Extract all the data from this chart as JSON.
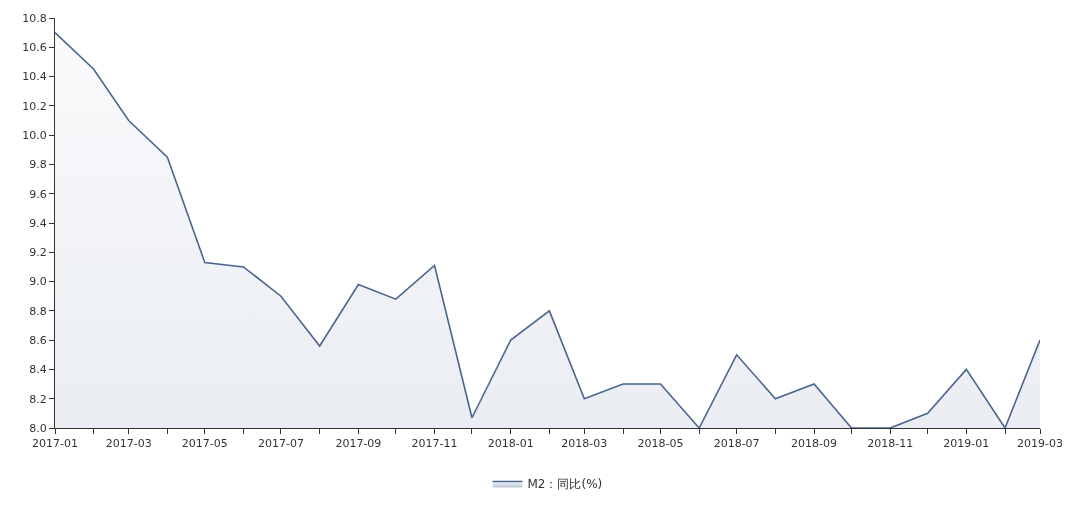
{
  "chart_data": {
    "type": "area",
    "x": [
      "2017-01",
      "2017-02",
      "2017-03",
      "2017-04",
      "2017-05",
      "2017-06",
      "2017-07",
      "2017-08",
      "2017-09",
      "2017-10",
      "2017-11",
      "2017-12",
      "2018-01",
      "2018-02",
      "2018-03",
      "2018-04",
      "2018-05",
      "2018-06",
      "2018-07",
      "2018-08",
      "2018-09",
      "2018-10",
      "2018-11",
      "2018-12",
      "2019-01",
      "2019-02",
      "2019-03"
    ],
    "series": [
      {
        "name": "M2：同比(%)",
        "color": "#4a6590",
        "values": [
          10.7,
          10.45,
          10.1,
          9.85,
          9.13,
          9.1,
          8.9,
          8.56,
          8.98,
          8.88,
          9.11,
          8.07,
          8.6,
          8.8,
          8.2,
          8.3,
          8.3,
          8.0,
          8.5,
          8.2,
          8.3,
          8.0,
          8.0,
          8.1,
          8.4,
          8.0,
          8.6
        ]
      }
    ],
    "xlim": [
      "2017-01",
      "2019-03"
    ],
    "xticks": [
      {
        "value": "2017-01",
        "label": "2017-01"
      },
      {
        "value": "2017-02",
        "label": null
      },
      {
        "value": "2017-03",
        "label": "2017-03"
      },
      {
        "value": "2017-04",
        "label": null
      },
      {
        "value": "2017-05",
        "label": "2017-05"
      },
      {
        "value": "2017-06",
        "label": null
      },
      {
        "value": "2017-07",
        "label": "2017-07"
      },
      {
        "value": "2017-08",
        "label": null
      },
      {
        "value": "2017-09",
        "label": "2017-09"
      },
      {
        "value": "2017-10",
        "label": null
      },
      {
        "value": "2017-11",
        "label": "2017-11"
      },
      {
        "value": "2017-12",
        "label": null
      },
      {
        "value": "2018-01",
        "label": "2018-01"
      },
      {
        "value": "2018-02",
        "label": null
      },
      {
        "value": "2018-03",
        "label": "2018-03"
      },
      {
        "value": "2018-04",
        "label": null
      },
      {
        "value": "2018-05",
        "label": "2018-05"
      },
      {
        "value": "2018-06",
        "label": null
      },
      {
        "value": "2018-07",
        "label": "2018-07"
      },
      {
        "value": "2018-08",
        "label": null
      },
      {
        "value": "2018-09",
        "label": "2018-09"
      },
      {
        "value": "2018-10",
        "label": null
      },
      {
        "value": "2018-11",
        "label": "2018-11"
      },
      {
        "value": "2018-12",
        "label": null
      },
      {
        "value": "2019-01",
        "label": "2019-01"
      },
      {
        "value": "2019-02",
        "label": null
      },
      {
        "value": "2019-03",
        "label": "2019-03"
      }
    ],
    "ylim": [
      8.0,
      10.8
    ],
    "yticks": [
      {
        "value": 8.0,
        "label": "8.0"
      },
      8.2,
      8.4,
      8.6,
      8.8,
      {
        "value": 9.0,
        "label": "9.0"
      },
      9.2,
      9.4,
      9.6,
      9.8,
      {
        "value": 10.0,
        "label": "10.0"
      },
      10.2,
      10.4,
      10.6,
      10.8
    ],
    "legend": "bottom",
    "marker": "none",
    "line_style": "solid"
  }
}
